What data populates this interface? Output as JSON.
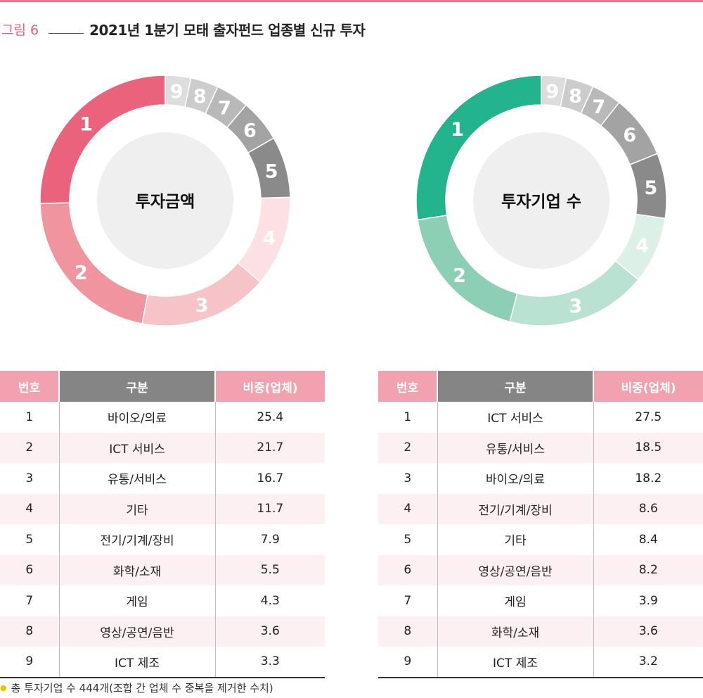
{
  "figure": {
    "number": "그림 6",
    "title": "2021년 1분기 모태 출자펀드 업종별 신규 투자"
  },
  "chart_data": [
    {
      "type": "pie",
      "center_label": "투자금액",
      "slice_labels": [
        "1",
        "2",
        "3",
        "4",
        "5",
        "6",
        "7",
        "8",
        "9"
      ],
      "values": [
        25.4,
        21.7,
        16.7,
        11.7,
        7.9,
        5.5,
        4.3,
        3.6,
        3.3
      ],
      "colors": [
        "#eb627c",
        "#f0959f",
        "#f6c3c9",
        "#fde0e3",
        "#8a8a8a",
        "#a3a3a3",
        "#b9b9b9",
        "#cccccc",
        "#dddddd"
      ]
    },
    {
      "type": "pie",
      "center_label": "투자기업 수",
      "slice_labels": [
        "1",
        "2",
        "3",
        "4",
        "5",
        "6",
        "7",
        "8",
        "9"
      ],
      "values": [
        27.5,
        18.5,
        18.2,
        8.6,
        8.4,
        8.2,
        3.9,
        3.6,
        3.2
      ],
      "colors": [
        "#23b48d",
        "#8dcfb5",
        "#b9e2d2",
        "#ddf0e8",
        "#8a8a8a",
        "#a3a3a3",
        "#b9b9b9",
        "#cccccc",
        "#dddddd"
      ]
    }
  ],
  "tables": {
    "headers": [
      "번호",
      "구분",
      "비중(업체)"
    ],
    "left": [
      [
        "1",
        "바이오/의료",
        "25.4"
      ],
      [
        "2",
        "ICT 서비스",
        "21.7"
      ],
      [
        "3",
        "유통/서비스",
        "16.7"
      ],
      [
        "4",
        "기타",
        "11.7"
      ],
      [
        "5",
        "전기/기계/장비",
        "7.9"
      ],
      [
        "6",
        "화학/소재",
        "5.5"
      ],
      [
        "7",
        "게임",
        "4.3"
      ],
      [
        "8",
        "영상/공연/음반",
        "3.6"
      ],
      [
        "9",
        "ICT 제조",
        "3.3"
      ]
    ],
    "right": [
      [
        "1",
        "ICT 서비스",
        "27.5"
      ],
      [
        "2",
        "유통/서비스",
        "18.5"
      ],
      [
        "3",
        "바이오/의료",
        "18.2"
      ],
      [
        "4",
        "전기/기계/장비",
        "8.6"
      ],
      [
        "5",
        "기타",
        "8.4"
      ],
      [
        "6",
        "영상/공연/음반",
        "8.2"
      ],
      [
        "7",
        "게임",
        "3.9"
      ],
      [
        "8",
        "화학/소재",
        "3.6"
      ],
      [
        "9",
        "ICT 제조",
        "3.2"
      ]
    ]
  },
  "footnote": "총 투자기업 수 444개(조합 간 업체 수 중복을 제거한 수치)"
}
